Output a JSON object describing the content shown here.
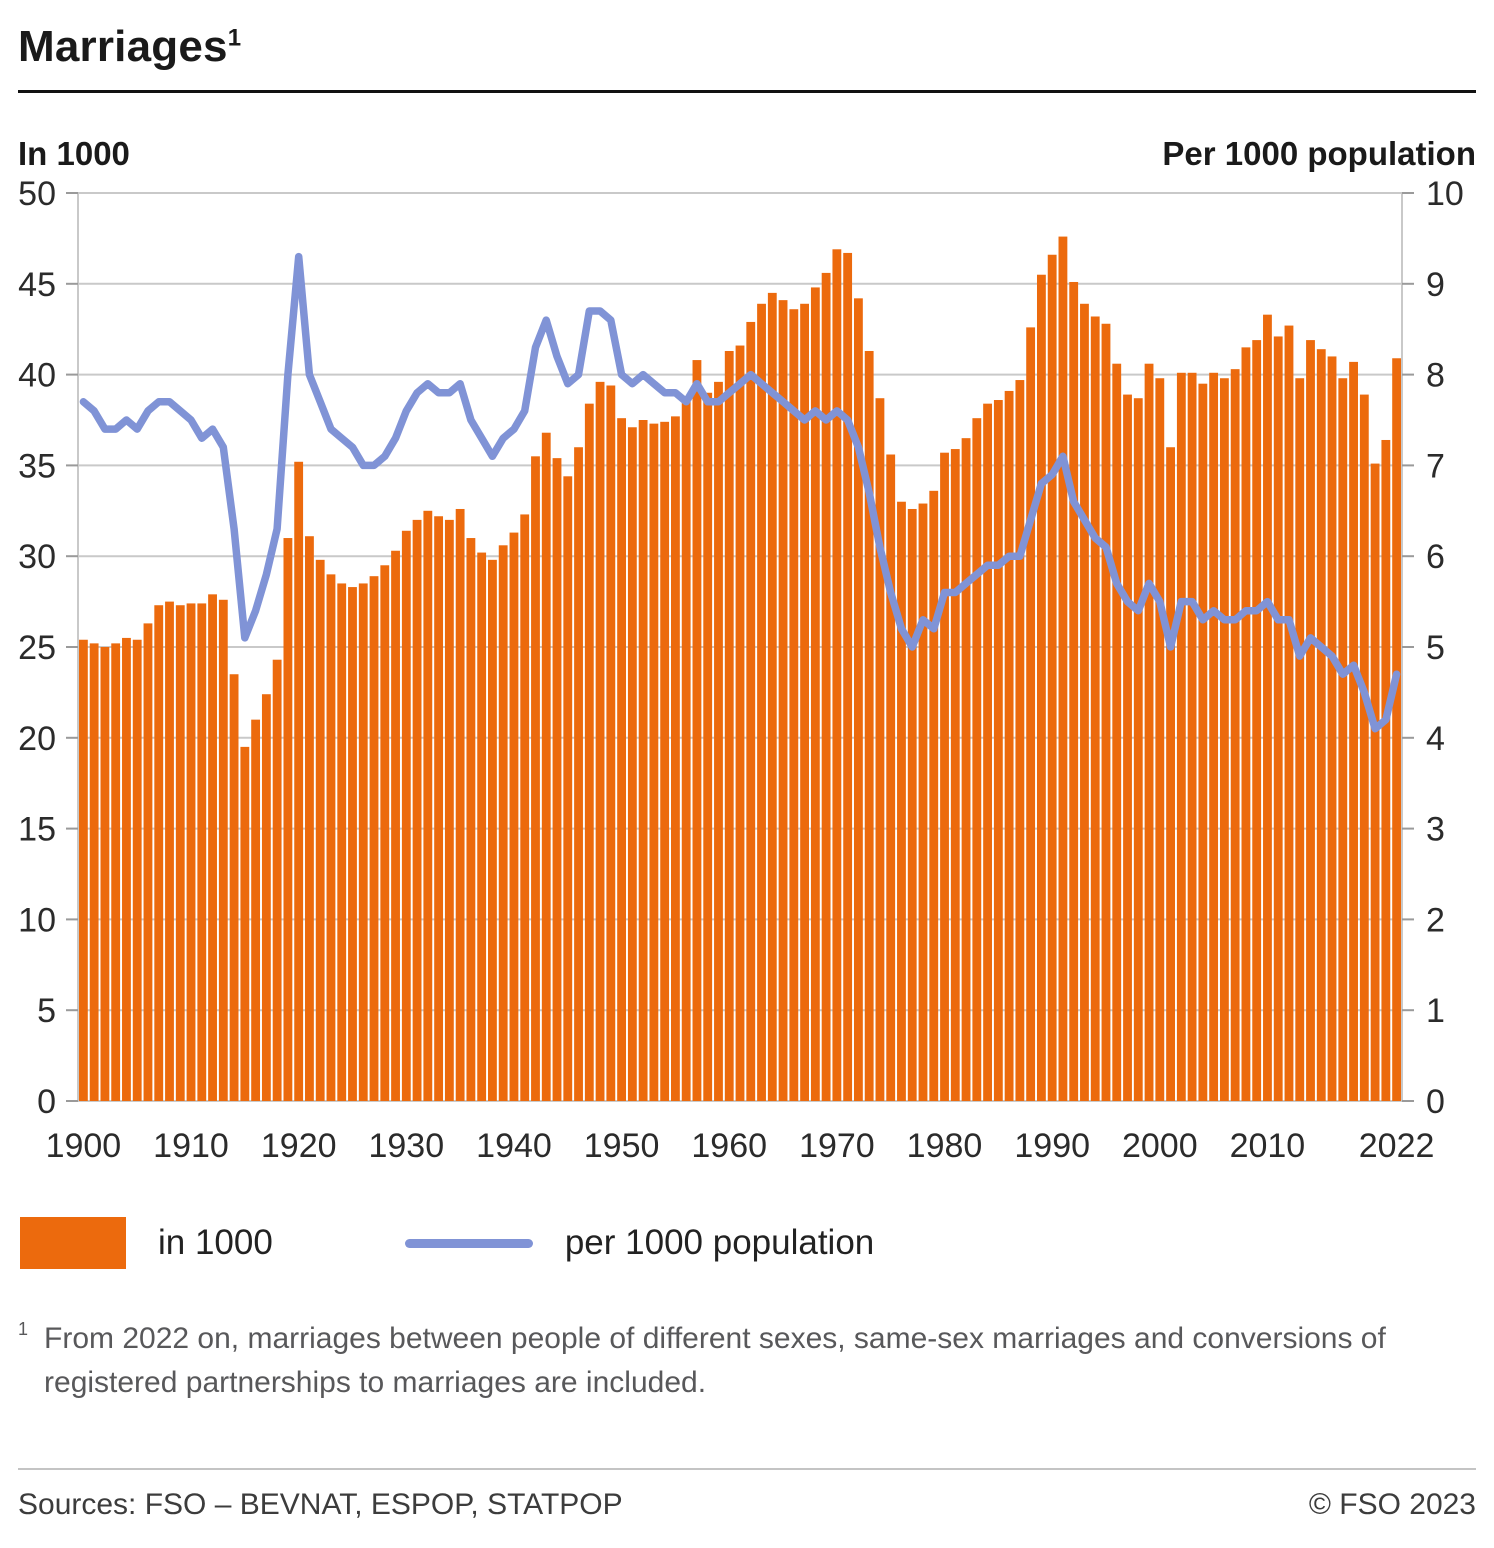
{
  "footnote": {
    "marker": "1",
    "text": "From 2022 on, marriages between people of different sexes, same-sex marriages and conversions of registered partnerships to marriages are included."
  },
  "footer": {
    "sources": "Sources: FSO – BEVNAT, ESPOP, STATPOP",
    "copyright": "© FSO 2023"
  },
  "chart_data": {
    "type": "bar+line",
    "title": "Marriages",
    "x_start": 1900,
    "x_end": 2022,
    "grid": true,
    "legend_position": "bottom",
    "colors": {
      "grid": "#c9c9c9",
      "axis": "#9a9a9a",
      "bar": "#ec6a0d",
      "line": "#8093d6"
    },
    "left_axis": {
      "label": "In 1000",
      "range": [
        0,
        50
      ],
      "tick_step": 5
    },
    "right_axis": {
      "label": "Per 1000 population",
      "range": [
        0,
        10
      ],
      "tick_step": 1
    },
    "x_axis": {
      "tick_years": [
        1900,
        1910,
        1920,
        1930,
        1940,
        1950,
        1960,
        1970,
        1980,
        1990,
        2000,
        2010,
        2022
      ]
    },
    "series": [
      {
        "name": "in 1000",
        "type": "bar",
        "axis": "left",
        "color": "#ec6a0d",
        "values": [
          25.4,
          25.2,
          25.0,
          25.2,
          25.5,
          25.4,
          26.3,
          27.3,
          27.5,
          27.3,
          27.4,
          27.4,
          27.9,
          27.6,
          23.5,
          19.5,
          21.0,
          22.4,
          24.3,
          31.0,
          35.2,
          31.1,
          29.8,
          29.0,
          28.5,
          28.3,
          28.5,
          28.9,
          29.5,
          30.3,
          31.4,
          32.0,
          32.5,
          32.2,
          32.0,
          32.6,
          31.0,
          30.2,
          29.8,
          30.6,
          31.3,
          32.3,
          35.5,
          36.8,
          35.4,
          34.4,
          36.0,
          38.4,
          39.6,
          39.4,
          37.6,
          37.1,
          37.5,
          37.3,
          37.4,
          37.7,
          38.5,
          40.8,
          39.0,
          39.6,
          41.3,
          41.6,
          42.9,
          43.9,
          44.5,
          44.1,
          43.6,
          43.9,
          44.8,
          45.6,
          46.9,
          46.7,
          44.2,
          41.3,
          38.7,
          35.6,
          33.0,
          32.6,
          32.9,
          33.6,
          35.7,
          35.9,
          36.5,
          37.6,
          38.4,
          38.6,
          39.1,
          39.7,
          42.6,
          45.5,
          46.6,
          47.6,
          45.1,
          43.9,
          43.2,
          42.8,
          40.6,
          38.9,
          38.7,
          40.6,
          39.8,
          36.0,
          40.1,
          40.1,
          39.5,
          40.1,
          39.8,
          40.3,
          41.5,
          41.9,
          43.3,
          42.1,
          42.7,
          39.8,
          41.9,
          41.4,
          41.0,
          39.8,
          40.7,
          38.9,
          35.1,
          36.4,
          40.9
        ]
      },
      {
        "name": "per 1000 population",
        "type": "line",
        "axis": "right",
        "color": "#8093d6",
        "values": [
          7.7,
          7.6,
          7.4,
          7.4,
          7.5,
          7.4,
          7.6,
          7.7,
          7.7,
          7.6,
          7.5,
          7.3,
          7.4,
          7.2,
          6.3,
          5.1,
          5.4,
          5.8,
          6.3,
          8.0,
          9.3,
          8.0,
          7.7,
          7.4,
          7.3,
          7.2,
          7.0,
          7.0,
          7.1,
          7.3,
          7.6,
          7.8,
          7.9,
          7.8,
          7.8,
          7.9,
          7.5,
          7.3,
          7.1,
          7.3,
          7.4,
          7.6,
          8.3,
          8.6,
          8.2,
          7.9,
          8.0,
          8.7,
          8.7,
          8.6,
          8.0,
          7.9,
          8.0,
          7.9,
          7.8,
          7.8,
          7.7,
          7.9,
          7.7,
          7.7,
          7.8,
          7.9,
          8.0,
          7.9,
          7.8,
          7.7,
          7.6,
          7.5,
          7.6,
          7.5,
          7.6,
          7.5,
          7.2,
          6.7,
          6.1,
          5.6,
          5.2,
          5.0,
          5.3,
          5.2,
          5.6,
          5.6,
          5.7,
          5.8,
          5.9,
          5.9,
          6.0,
          6.0,
          6.4,
          6.8,
          6.9,
          7.1,
          6.6,
          6.4,
          6.2,
          6.1,
          5.7,
          5.5,
          5.4,
          5.7,
          5.5,
          5.0,
          5.5,
          5.5,
          5.3,
          5.4,
          5.3,
          5.3,
          5.4,
          5.4,
          5.5,
          5.3,
          5.3,
          4.9,
          5.1,
          5.0,
          4.9,
          4.7,
          4.8,
          4.5,
          4.1,
          4.2,
          4.7
        ]
      }
    ]
  }
}
